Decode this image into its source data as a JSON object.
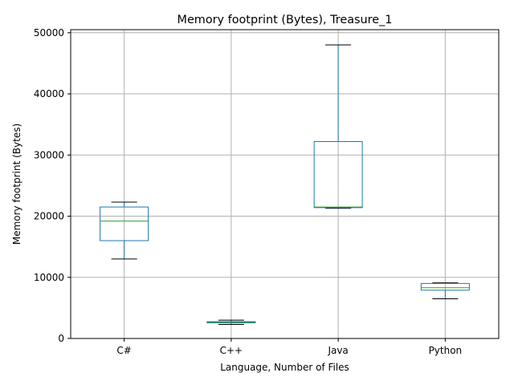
{
  "chart_data": {
    "type": "box",
    "title": "Memory footprint (Bytes), Treasure_1",
    "xlabel": "Language, Number of Files",
    "ylabel": "Memory footprint (Bytes)",
    "ylim": [
      0,
      50500
    ],
    "yticks": [
      0,
      10000,
      20000,
      30000,
      40000,
      50000
    ],
    "ytick_labels": [
      "0",
      "10000",
      "20000",
      "30000",
      "40000",
      "50000"
    ],
    "grid": true,
    "categories": [
      "C#",
      "C++",
      "Java",
      "Python"
    ],
    "boxes": [
      {
        "name": "C#",
        "whisker_low": 13000,
        "q1": 16000,
        "median": 19200,
        "q3": 21500,
        "whisker_high": 22300
      },
      {
        "name": "C++",
        "whisker_low": 2300,
        "q1": 2550,
        "median": 2650,
        "q3": 2750,
        "whisker_high": 3000
      },
      {
        "name": "Java",
        "whisker_low": 21300,
        "q1": 21400,
        "median": 21500,
        "q3": 32200,
        "whisker_high": 48000
      },
      {
        "name": "Python",
        "whisker_low": 6500,
        "q1": 7900,
        "median": 8300,
        "q3": 9000,
        "whisker_high": 9100
      }
    ],
    "colors": {
      "box": "#1f77b4",
      "median": "#2ca02c",
      "cap": "#000000",
      "grid": "#b0b0b0",
      "axis": "#000000"
    }
  }
}
